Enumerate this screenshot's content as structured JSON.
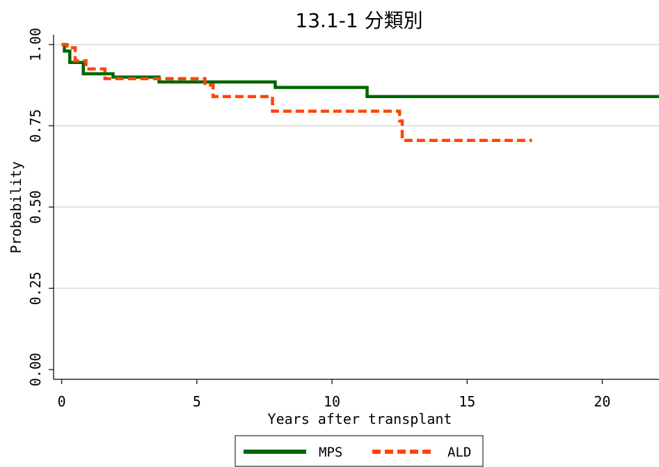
{
  "chart_data": {
    "type": "line",
    "title": "13.1-1 分類別",
    "xlabel": "Years after transplant",
    "ylabel": "Probability",
    "xlim": [
      -0.3,
      22.1
    ],
    "ylim": [
      -0.03,
      1.03
    ],
    "x_ticks": [
      0,
      5,
      10,
      15,
      20
    ],
    "x_tick_labels": [
      "0",
      "5",
      "10",
      "15",
      "20"
    ],
    "y_ticks": [
      0.0,
      0.25,
      0.5,
      0.75,
      1.0
    ],
    "y_tick_labels": [
      "0.00",
      "0.25",
      "0.50",
      "0.75",
      "1.00"
    ],
    "grid": "horizontal",
    "legend_position": "bottom",
    "series": [
      {
        "name": "MPS",
        "color": "#006400",
        "style": "solid",
        "steps": [
          [
            0,
            1.0
          ],
          [
            0.1,
            0.98
          ],
          [
            0.3,
            0.945
          ],
          [
            0.8,
            0.91
          ],
          [
            1.9,
            0.9
          ],
          [
            3.6,
            0.885
          ],
          [
            7.9,
            0.868
          ],
          [
            11.3,
            0.84
          ],
          [
            22.1,
            0.84
          ]
        ]
      },
      {
        "name": "ALD",
        "color": "#FF4500",
        "style": "dashed",
        "steps": [
          [
            0,
            1.0
          ],
          [
            0.2,
            0.99
          ],
          [
            0.5,
            0.95
          ],
          [
            0.9,
            0.925
          ],
          [
            1.6,
            0.895
          ],
          [
            5.3,
            0.875
          ],
          [
            5.6,
            0.84
          ],
          [
            7.8,
            0.795
          ],
          [
            12.5,
            0.765
          ],
          [
            12.6,
            0.705
          ],
          [
            17.4,
            0.705
          ]
        ]
      }
    ]
  }
}
